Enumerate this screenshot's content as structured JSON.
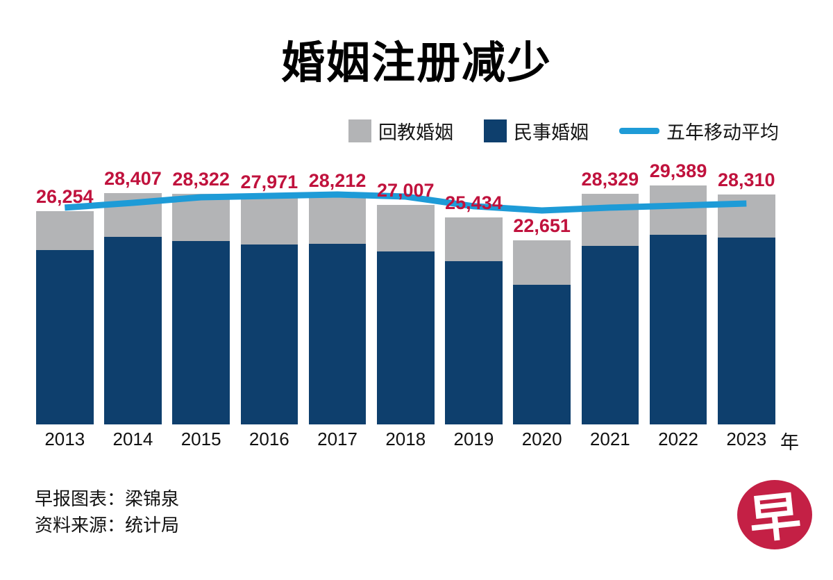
{
  "title": "婚姻注册减少",
  "colors": {
    "bar_muslim": "#b3b4b6",
    "bar_civil": "#0e3f6d",
    "moving_avg_line": "#1e9bd7",
    "value_label": "#c0123d",
    "logo_red": "#c42045"
  },
  "legend": {
    "muslim_label": "回教婚姻",
    "civil_label": "民事婚姻",
    "moving_avg_label": "五年移动平均"
  },
  "x_axis_unit": "年",
  "footer": {
    "credit": "早报图表：梁锦泉",
    "source": "资料来源：统计局"
  },
  "logo_glyph": "早",
  "chart_data": {
    "type": "bar",
    "stacked": true,
    "title": "婚姻注册减少",
    "xlabel": "年",
    "categories": [
      "2013",
      "2014",
      "2015",
      "2016",
      "2017",
      "2018",
      "2019",
      "2020",
      "2021",
      "2022",
      "2023"
    ],
    "totals": [
      26254,
      28407,
      28322,
      27971,
      28212,
      27007,
      25434,
      22651,
      28329,
      29389,
      28310
    ],
    "total_labels": [
      "26,254",
      "28,407",
      "28,322",
      "27,971",
      "28,212",
      "27,007",
      "25,434",
      "22,651",
      "28,329",
      "29,389",
      "28,310"
    ],
    "series": [
      {
        "name": "民事婚姻",
        "role": "civil",
        "estimated": true,
        "values": [
          21450,
          23050,
          22550,
          22100,
          22200,
          21250,
          20050,
          17150,
          21950,
          23300,
          22950
        ]
      },
      {
        "name": "回教婚姻",
        "role": "muslim",
        "estimated": true,
        "values": [
          4804,
          5357,
          5772,
          5871,
          6012,
          5757,
          5384,
          5501,
          6379,
          6089,
          5360
        ]
      }
    ],
    "line_series": {
      "name": "五年移动平均",
      "estimated": true,
      "values": [
        26650,
        27240,
        27930,
        28100,
        28270,
        28010,
        26820,
        26300,
        26650,
        26900,
        27160
      ]
    },
    "ylim": [
      0,
      30000
    ],
    "grid": false,
    "legend_position": "top-right"
  }
}
